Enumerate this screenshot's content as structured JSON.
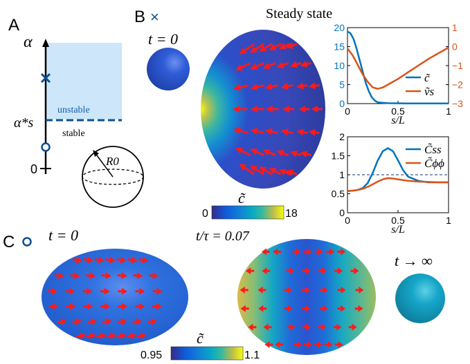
{
  "panels": {
    "a": {
      "letter": "A",
      "axis_label": "α",
      "zero_label": "0",
      "alpha_star_label": "α*s",
      "unstable_label": "unstable",
      "stable_label": "stable",
      "radius_label": "R0"
    },
    "b": {
      "letter": "B",
      "marker": "×",
      "title": "Steady state",
      "t0_label": "t = 0",
      "colorbar": {
        "symbol": "c̃",
        "min": "0",
        "max": "18"
      }
    },
    "c": {
      "letter": "C",
      "marker": "○",
      "t0_label": "t = 0",
      "t_mid_label": "t/τ = 0.07",
      "t_inf_label": "t → ∞",
      "colorbar": {
        "symbol": "c̃",
        "min": "0.95",
        "max": "1.1"
      }
    }
  },
  "colors": {
    "line_blue": "#0072BD",
    "line_orange": "#D95319",
    "arrow_red": "#FF1A1A",
    "unstable_fill": "#CDE6FA",
    "sphere_blue": "#2F5CD6",
    "sphere_cyan": "#16A6C9"
  },
  "chart_data": [
    {
      "type": "line",
      "xlabel": "s/L",
      "xlim": [
        0,
        1
      ],
      "xticks": [
        "0",
        "0.5",
        "1"
      ],
      "left_yticks": [
        "0",
        "5",
        "10",
        "15",
        "20"
      ],
      "right_yticks": [
        "-3",
        "-2",
        "-1",
        "0",
        "1"
      ],
      "ylim_left": [
        0,
        20
      ],
      "ylim_right": [
        -3,
        1
      ],
      "series": [
        {
          "name": "c̃",
          "axis": "left",
          "color": "#0072BD",
          "x": [
            0,
            0.03,
            0.06,
            0.09,
            0.12,
            0.15,
            0.18,
            0.21,
            0.24,
            0.27,
            0.3,
            0.4,
            0.6,
            0.8,
            1.0
          ],
          "y": [
            19,
            18.5,
            17,
            14.5,
            11.5,
            8.5,
            5.5,
            3.3,
            1.7,
            0.8,
            0.3,
            0.1,
            0.05,
            0.05,
            0.05
          ]
        },
        {
          "name": "ṽs",
          "axis": "right",
          "color": "#D95319",
          "x": [
            0,
            0.05,
            0.1,
            0.15,
            0.2,
            0.25,
            0.3,
            0.35,
            0.4,
            0.5,
            0.6,
            0.7,
            0.8,
            0.9,
            1.0
          ],
          "y": [
            -0.1,
            -0.45,
            -0.95,
            -1.45,
            -1.85,
            -2.15,
            -2.22,
            -2.15,
            -2.0,
            -1.7,
            -1.35,
            -1.0,
            -0.65,
            -0.35,
            -0.05
          ]
        }
      ]
    },
    {
      "type": "line",
      "xlabel": "s/L",
      "xlim": [
        0,
        1
      ],
      "ylim": [
        0,
        2
      ],
      "xticks": [
        "0",
        "0.5",
        "1"
      ],
      "yticks": [
        "0",
        "0.5",
        "1",
        "1.5",
        "2"
      ],
      "reference_line": 1,
      "series": [
        {
          "name": "C̃ss",
          "color": "#0072BD",
          "x": [
            0,
            0.05,
            0.1,
            0.15,
            0.2,
            0.25,
            0.3,
            0.35,
            0.4,
            0.45,
            0.5,
            0.55,
            0.6,
            0.7,
            0.8,
            0.9,
            1.0
          ],
          "y": [
            0.57,
            0.58,
            0.6,
            0.65,
            0.78,
            1.05,
            1.38,
            1.62,
            1.7,
            1.62,
            1.38,
            1.12,
            0.95,
            0.84,
            0.8,
            0.8,
            0.8
          ]
        },
        {
          "name": "C̃ϕϕ",
          "color": "#D95319",
          "x": [
            0,
            0.05,
            0.1,
            0.15,
            0.2,
            0.25,
            0.3,
            0.35,
            0.4,
            0.45,
            0.5,
            0.6,
            0.7,
            0.8,
            0.9,
            1.0
          ],
          "y": [
            0.57,
            0.58,
            0.6,
            0.63,
            0.68,
            0.75,
            0.82,
            0.88,
            0.91,
            0.9,
            0.88,
            0.84,
            0.82,
            0.81,
            0.8,
            0.8
          ]
        }
      ]
    }
  ]
}
